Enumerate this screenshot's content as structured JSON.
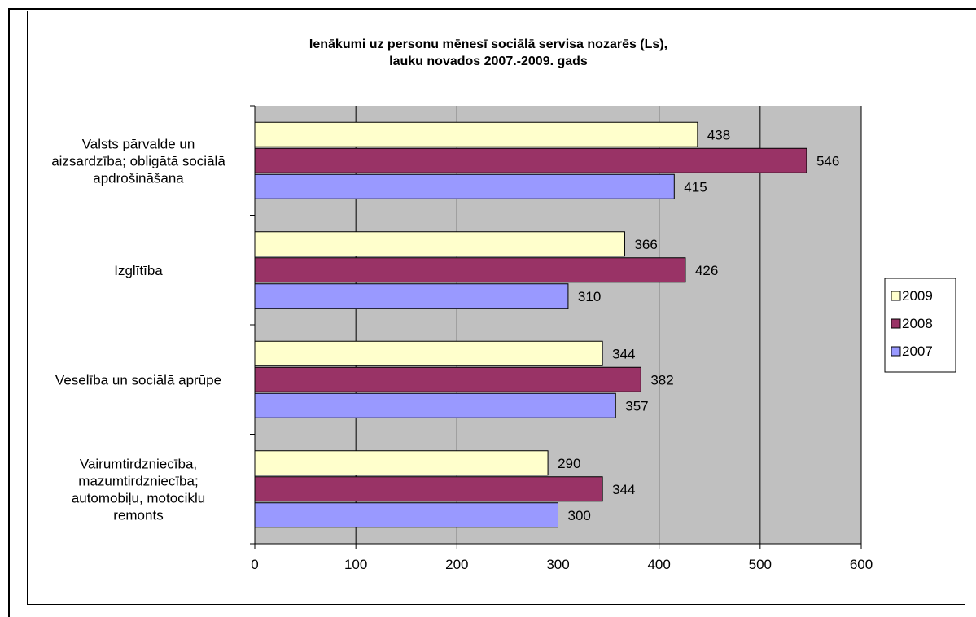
{
  "chart_data": {
    "type": "bar",
    "orientation": "horizontal",
    "title_lines": [
      "Ienākumi uz personu mēnesī sociālā servisa nozarēs (Ls),",
      "lauku novados 2007.-2009. gads"
    ],
    "categories": [
      [
        "Valsts pārvalde un",
        "aizsardzība; obligātā sociālā",
        "apdrošināšana"
      ],
      [
        "Izglītība"
      ],
      [
        "Veselība un sociālā aprūpe"
      ],
      [
        "Vairumtirdzniecība,",
        "mazumtirdzniecība;",
        "automobiļu, motociklu",
        "remonts"
      ]
    ],
    "series": [
      {
        "name": "2009",
        "color": "#ffffcc",
        "values": [
          438,
          366,
          344,
          290
        ]
      },
      {
        "name": "2008",
        "color": "#993366",
        "values": [
          546,
          426,
          382,
          344
        ]
      },
      {
        "name": "2007",
        "color": "#9999ff",
        "values": [
          415,
          310,
          357,
          300
        ]
      }
    ],
    "xlim": [
      0,
      600
    ],
    "ticks": [
      "0",
      "100",
      "200",
      "300",
      "400",
      "500",
      "600"
    ],
    "grid": true,
    "plot_background": "#c0c0c0",
    "legend_position": "right",
    "legend": [
      "2009",
      "2008",
      "2007"
    ]
  }
}
